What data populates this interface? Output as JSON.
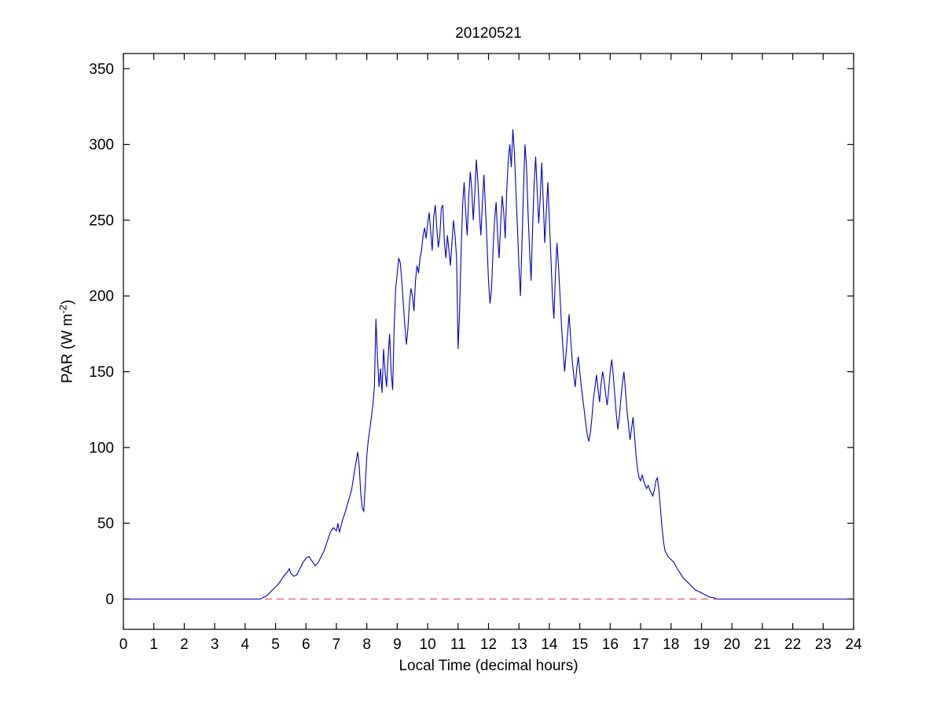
{
  "labels": {
    "ylabel_prefix": "PAR (W m",
    "ylabel_sup": "-2",
    "ylabel_suffix": ")"
  },
  "chart_data": {
    "type": "line",
    "title": "20120521",
    "xlabel": "Local Time (decimal hours)",
    "ylabel": "PAR (W m^-2)",
    "xlim": [
      0,
      24
    ],
    "ylim": [
      -20,
      360
    ],
    "x_ticks": [
      0,
      1,
      2,
      3,
      4,
      5,
      6,
      7,
      8,
      9,
      10,
      11,
      12,
      13,
      14,
      15,
      16,
      17,
      18,
      19,
      20,
      21,
      22,
      23,
      24
    ],
    "y_ticks": [
      0,
      50,
      100,
      150,
      200,
      250,
      300,
      350
    ],
    "grid": false,
    "series": [
      {
        "name": "par",
        "color": "#0000BB",
        "style": "solid",
        "x": [
          0,
          4.5,
          4.6,
          4.7,
          4.8,
          4.9,
          5.0,
          5.1,
          5.2,
          5.3,
          5.4,
          5.45,
          5.5,
          5.6,
          5.7,
          5.8,
          5.9,
          6.0,
          6.1,
          6.2,
          6.3,
          6.4,
          6.5,
          6.6,
          6.7,
          6.8,
          6.9,
          7.0,
          7.05,
          7.1,
          7.2,
          7.3,
          7.4,
          7.5,
          7.6,
          7.7,
          7.75,
          7.8,
          7.85,
          7.9,
          7.95,
          8.0,
          8.05,
          8.1,
          8.15,
          8.2,
          8.25,
          8.3,
          8.35,
          8.4,
          8.45,
          8.5,
          8.55,
          8.6,
          8.65,
          8.7,
          8.75,
          8.8,
          8.85,
          8.9,
          8.95,
          9.0,
          9.05,
          9.1,
          9.15,
          9.2,
          9.25,
          9.3,
          9.35,
          9.4,
          9.45,
          9.5,
          9.55,
          9.6,
          9.65,
          9.7,
          9.75,
          9.8,
          9.85,
          9.9,
          9.95,
          10.0,
          10.05,
          10.1,
          10.15,
          10.2,
          10.25,
          10.3,
          10.35,
          10.4,
          10.45,
          10.5,
          10.55,
          10.6,
          10.65,
          10.7,
          10.75,
          10.8,
          10.85,
          10.9,
          10.95,
          11.0,
          11.05,
          11.1,
          11.15,
          11.2,
          11.25,
          11.3,
          11.35,
          11.4,
          11.45,
          11.5,
          11.55,
          11.6,
          11.65,
          11.7,
          11.75,
          11.8,
          11.85,
          11.9,
          11.95,
          12.0,
          12.05,
          12.1,
          12.15,
          12.2,
          12.25,
          12.3,
          12.35,
          12.4,
          12.45,
          12.5,
          12.55,
          12.6,
          12.65,
          12.7,
          12.75,
          12.8,
          12.85,
          12.9,
          12.95,
          13.0,
          13.05,
          13.1,
          13.15,
          13.2,
          13.25,
          13.3,
          13.35,
          13.4,
          13.45,
          13.5,
          13.55,
          13.6,
          13.65,
          13.7,
          13.75,
          13.8,
          13.85,
          13.9,
          13.95,
          14.0,
          14.05,
          14.1,
          14.15,
          14.2,
          14.25,
          14.3,
          14.35,
          14.4,
          14.45,
          14.5,
          14.55,
          14.6,
          14.65,
          14.7,
          14.75,
          14.8,
          14.85,
          14.9,
          14.95,
          15.0,
          15.05,
          15.1,
          15.15,
          15.2,
          15.25,
          15.3,
          15.35,
          15.4,
          15.45,
          15.5,
          15.55,
          15.6,
          15.65,
          15.7,
          15.75,
          15.8,
          15.85,
          15.9,
          15.95,
          16.0,
          16.05,
          16.1,
          16.15,
          16.2,
          16.25,
          16.3,
          16.35,
          16.4,
          16.45,
          16.5,
          16.55,
          16.6,
          16.65,
          16.7,
          16.75,
          16.8,
          16.85,
          16.9,
          16.95,
          17.0,
          17.05,
          17.1,
          17.15,
          17.2,
          17.25,
          17.3,
          17.35,
          17.4,
          17.45,
          17.5,
          17.55,
          17.6,
          17.65,
          17.7,
          17.75,
          17.8,
          17.85,
          17.9,
          17.95,
          18.0,
          18.1,
          18.2,
          18.3,
          18.4,
          18.5,
          18.6,
          18.7,
          18.8,
          18.9,
          19.0,
          19.1,
          19.2,
          19.3,
          19.4,
          19.5,
          20.0,
          24.0
        ],
        "y": [
          0,
          0,
          1,
          2,
          4,
          6,
          8,
          10,
          13,
          16,
          18,
          20,
          17,
          15,
          16,
          20,
          24,
          27,
          28,
          25,
          22,
          24,
          28,
          32,
          38,
          44,
          47,
          45,
          50,
          44,
          52,
          58,
          65,
          72,
          85,
          97,
          88,
          70,
          60,
          58,
          75,
          95,
          105,
          112,
          120,
          128,
          140,
          185,
          160,
          140,
          152,
          136,
          165,
          150,
          140,
          160,
          175,
          150,
          138,
          180,
          205,
          215,
          225,
          222,
          210,
          195,
          180,
          168,
          178,
          195,
          205,
          200,
          190,
          210,
          220,
          215,
          225,
          230,
          240,
          245,
          238,
          248,
          255,
          242,
          230,
          252,
          260,
          245,
          232,
          240,
          258,
          260,
          235,
          225,
          240,
          230,
          220,
          235,
          250,
          240,
          225,
          165,
          190,
          230,
          260,
          275,
          255,
          240,
          265,
          282,
          270,
          250,
          268,
          290,
          275,
          255,
          240,
          262,
          280,
          258,
          235,
          210,
          195,
          205,
          230,
          250,
          262,
          240,
          225,
          248,
          266,
          255,
          238,
          270,
          290,
          300,
          285,
          310,
          295,
          270,
          245,
          220,
          200,
          235,
          270,
          300,
          285,
          255,
          230,
          210,
          245,
          275,
          292,
          270,
          248,
          265,
          288,
          262,
          235,
          255,
          275,
          250,
          225,
          200,
          185,
          215,
          235,
          220,
          200,
          180,
          165,
          150,
          162,
          175,
          188,
          172,
          158,
          148,
          140,
          152,
          160,
          150,
          140,
          132,
          124,
          115,
          108,
          104,
          110,
          120,
          132,
          140,
          148,
          138,
          130,
          142,
          150,
          144,
          135,
          128,
          138,
          150,
          158,
          148,
          135,
          122,
          112,
          120,
          132,
          142,
          150,
          138,
          125,
          115,
          105,
          112,
          120,
          108,
          95,
          85,
          80,
          78,
          82,
          78,
          75,
          73,
          75,
          72,
          70,
          68,
          72,
          78,
          80,
          72,
          60,
          48,
          38,
          32,
          30,
          28,
          27,
          26,
          24,
          20,
          17,
          14,
          12,
          10,
          8,
          6,
          5,
          4,
          3,
          2,
          1,
          1,
          0,
          0,
          0
        ]
      },
      {
        "name": "zero-reference",
        "color": "#DD4444",
        "style": "dashed",
        "x": [
          0,
          24
        ],
        "y": [
          0,
          0
        ]
      }
    ]
  }
}
